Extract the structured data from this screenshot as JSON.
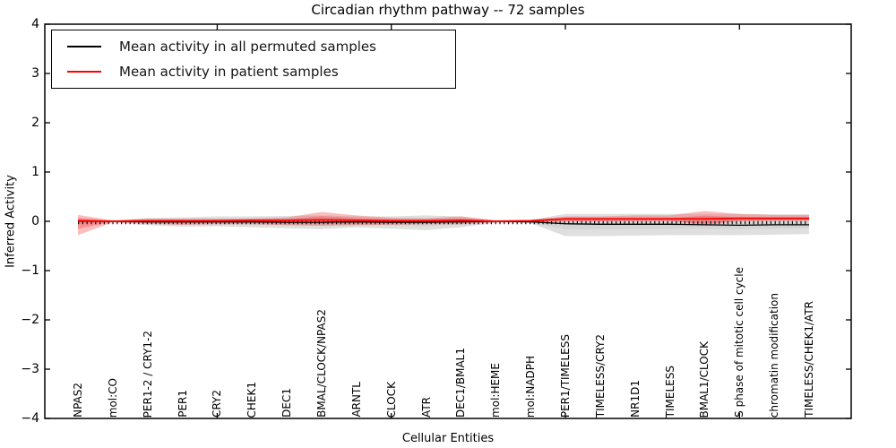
{
  "figure": {
    "title": "Circadian rhythm pathway -- 72 samples",
    "xlabel": "Cellular Entities",
    "ylabel": "Inferred Activity"
  },
  "legend": {
    "items": [
      {
        "label": "Mean activity in all permuted samples",
        "color": "#000000"
      },
      {
        "label": "Mean activity in patient samples",
        "color": "#ff0000"
      }
    ]
  },
  "axes": {
    "ylim": [
      -4,
      4
    ],
    "yticks": [
      {
        "label": "4",
        "value": 4
      },
      {
        "label": "3",
        "value": 3
      },
      {
        "label": "2",
        "value": 2
      },
      {
        "label": "1",
        "value": 1
      },
      {
        "label": "0",
        "value": 0
      },
      {
        "label": "−1",
        "value": -1
      },
      {
        "label": "−2",
        "value": -2
      },
      {
        "label": "−3",
        "value": -3
      },
      {
        "label": "−4",
        "value": -4
      }
    ],
    "major_xtick_indices": [
      4,
      9,
      14,
      19
    ]
  },
  "colors": {
    "permuted_line": "#000000",
    "patient_line": "#ff0000",
    "permuted_band": "#bfbfbf",
    "patient_band": "#f25555",
    "zero_dash": "#111111",
    "spine": "#000000"
  },
  "chart_data": {
    "type": "line",
    "title": "Circadian rhythm pathway -- 72 samples",
    "xlabel": "Cellular Entities",
    "ylabel": "Inferred Activity",
    "ylim": [
      -4,
      4
    ],
    "grid": false,
    "legend_position": "upper left",
    "categories": [
      "NPAS2",
      "mol:CO",
      "PER1-2 / CRY1-2",
      "PER1",
      "CRY2",
      "CHEK1",
      "DEC1",
      "BMAL/CLOCK/NPAS2",
      "ARNTL",
      "CLOCK",
      "ATR",
      "DEC1/BMAL1",
      "mol:HEME",
      "mol:NADPH",
      "PER1/TIMELESS",
      "TIMELESS/CRY2",
      "NR1D1",
      "TIMELESS",
      "BMAL1/CLOCK",
      "S phase of mitotic cell cycle",
      "chromatin modification",
      "TIMELESS/CHEK1/ATR"
    ],
    "series": [
      {
        "name": "Mean activity in all permuted samples",
        "color": "#000000",
        "values": [
          0,
          0,
          -0.01,
          -0.01,
          -0.01,
          -0.01,
          -0.02,
          -0.02,
          -0.01,
          -0.02,
          -0.02,
          -0.01,
          0,
          -0.01,
          -0.05,
          -0.06,
          -0.06,
          -0.06,
          -0.07,
          -0.08,
          -0.07,
          -0.07
        ]
      },
      {
        "name": "Mean activity in patient samples",
        "color": "#ff0000",
        "values": [
          0.01,
          0,
          0.01,
          0.01,
          0.01,
          0.02,
          0.02,
          0.03,
          0.02,
          0.01,
          0.01,
          0.02,
          0,
          0.01,
          0.05,
          0.05,
          0.05,
          0.05,
          0.05,
          0.06,
          0.06,
          0.06
        ]
      }
    ],
    "bands": [
      {
        "name": "permuted-samples-range",
        "color": "#bfbfbf",
        "upper": [
          0.05,
          0.02,
          0.07,
          0.08,
          0.1,
          0.1,
          0.11,
          0.12,
          0.1,
          0.1,
          0.12,
          0.1,
          0.02,
          0.03,
          0.15,
          0.15,
          0.15,
          0.15,
          0.15,
          0.15,
          0.14,
          0.14
        ],
        "lower": [
          -0.05,
          -0.02,
          -0.08,
          -0.11,
          -0.1,
          -0.12,
          -0.14,
          -0.16,
          -0.12,
          -0.15,
          -0.18,
          -0.12,
          -0.03,
          -0.04,
          -0.3,
          -0.3,
          -0.29,
          -0.28,
          -0.28,
          -0.28,
          -0.27,
          -0.26
        ]
      },
      {
        "name": "patient-samples-range",
        "color": "#f25555",
        "upper": [
          0.13,
          0.02,
          0.05,
          0.05,
          0.05,
          0.06,
          0.08,
          0.19,
          0.12,
          0.07,
          0.06,
          0.1,
          0.02,
          0.03,
          0.1,
          0.1,
          0.12,
          0.12,
          0.21,
          0.15,
          0.13,
          0.13
        ],
        "lower": [
          -0.28,
          -0.02,
          -0.05,
          -0.07,
          -0.06,
          -0.06,
          -0.08,
          -0.09,
          -0.08,
          -0.07,
          -0.06,
          -0.06,
          -0.02,
          -0.02,
          0.0,
          0.0,
          0.01,
          0.01,
          -0.08,
          0.01,
          0.02,
          0.02
        ]
      }
    ],
    "zero_reference_line": true
  }
}
